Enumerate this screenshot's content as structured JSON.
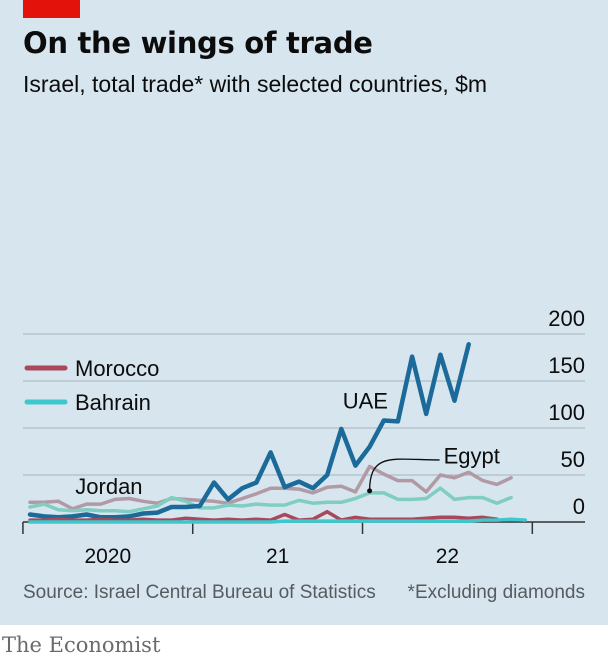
{
  "header": {
    "title": "On the wings of trade",
    "subtitle": "Israel, total trade* with selected countries, $m"
  },
  "footer": {
    "source": "Source: Israel Central Bureau of Statistics",
    "note": "*Excluding diamonds"
  },
  "brand": "The Economist",
  "colors": {
    "background": "#d7e5ee",
    "uae": "#1b6a99",
    "jordan": "#b19aa4",
    "egypt": "#7fcec1",
    "morocco": "#a8485a",
    "bahrain": "#3ec7cc",
    "tag": "#e3120b"
  },
  "chart_data": {
    "type": "line",
    "y_axis": {
      "range": [
        0,
        200
      ],
      "ticks": [
        "0",
        "50",
        "100",
        "150",
        "200"
      ],
      "position": "right",
      "grid": true
    },
    "x_axis": {
      "tick_labels": [
        "2020",
        "21",
        "22"
      ]
    },
    "legend": [
      {
        "name": "Morocco",
        "color_key": "morocco"
      },
      {
        "name": "Bahrain",
        "color_key": "bahrain"
      }
    ],
    "series": [
      {
        "name": "Jordan",
        "color_key": "jordan",
        "label_pos": "left",
        "values": [
          21,
          21,
          22,
          14,
          19,
          19,
          24,
          25,
          22,
          20,
          25,
          24,
          23,
          22,
          20,
          25,
          30,
          36,
          36,
          35,
          31,
          37,
          38,
          32,
          59,
          51,
          44,
          44,
          32,
          50,
          47,
          53,
          44,
          40,
          47
        ]
      },
      {
        "name": "Egypt",
        "color_key": "egypt",
        "label_pos": "callout",
        "values": [
          16,
          19,
          13,
          12,
          13,
          12,
          12,
          11,
          14,
          17,
          26,
          22,
          15,
          15,
          18,
          17,
          19,
          18,
          18,
          23,
          20,
          21,
          21,
          25,
          31,
          31,
          24,
          24,
          25,
          36,
          24,
          26,
          26,
          20,
          26
        ]
      },
      {
        "name": "UAE",
        "color_key": "uae",
        "label_pos": "upper",
        "values": [
          8,
          6,
          5,
          6,
          8,
          5,
          5,
          6,
          9,
          10,
          16,
          16,
          17,
          42,
          24,
          36,
          42,
          74,
          37,
          43,
          36,
          50,
          99,
          60,
          80,
          108,
          107,
          176,
          115,
          178,
          129,
          189
        ]
      },
      {
        "name": "Morocco",
        "color_key": "morocco",
        "values": [
          2,
          2,
          3,
          2,
          2,
          3,
          2,
          2,
          3,
          2,
          2,
          4,
          3,
          2,
          3,
          2,
          3,
          2,
          8,
          2,
          3,
          11,
          2,
          5,
          3,
          3,
          3,
          3,
          4,
          5,
          5,
          4,
          5,
          3
        ]
      },
      {
        "name": "Bahrain",
        "color_key": "bahrain",
        "values": [
          0,
          0,
          0,
          0,
          0,
          0,
          0,
          0,
          0,
          0,
          0,
          0,
          0,
          0,
          0,
          0,
          0,
          0,
          1,
          1,
          1,
          1,
          1,
          1,
          1,
          1,
          1,
          1,
          1,
          1,
          1,
          1,
          2,
          2,
          3,
          2
        ]
      }
    ],
    "annotations": [
      {
        "text": "Egypt",
        "target_series": "Egypt",
        "target_index": 24
      }
    ]
  }
}
